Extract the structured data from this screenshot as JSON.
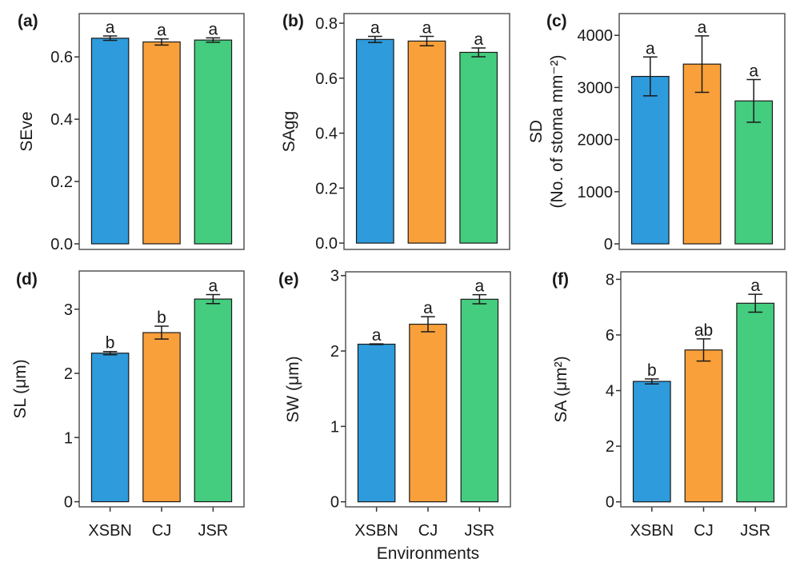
{
  "chart_data": [
    {
      "type": "bar",
      "panel": "(a)",
      "ylabel": "SEve",
      "categories": [
        "XSBN",
        "CJ",
        "JSR"
      ],
      "values": [
        0.66,
        0.648,
        0.654
      ],
      "errors": [
        0.007,
        0.01,
        0.007
      ],
      "letters": [
        "a",
        "a",
        "a"
      ],
      "yticks": [
        0.0,
        0.2,
        0.4,
        0.6
      ],
      "tick_labels": [
        "0.0",
        "0.2",
        "0.4",
        "0.6"
      ],
      "ylim": [
        -0.018,
        0.739
      ],
      "show_xticks": false
    },
    {
      "type": "bar",
      "panel": "(b)",
      "ylabel": "SAgg",
      "categories": [
        "XSBN",
        "CJ",
        "JSR"
      ],
      "values": [
        0.741,
        0.735,
        0.694
      ],
      "errors": [
        0.011,
        0.017,
        0.016
      ],
      "letters": [
        "a",
        "a",
        "a"
      ],
      "yticks": [
        0.0,
        0.2,
        0.4,
        0.6,
        0.8
      ],
      "tick_labels": [
        "0.0",
        "0.2",
        "0.4",
        "0.6",
        "0.8"
      ],
      "ylim": [
        -0.023,
        0.835
      ],
      "show_xticks": false
    },
    {
      "type": "bar",
      "panel": "(c)",
      "ylabel": "SD",
      "ylabel2": "(No. of stoma mm⁻²)",
      "categories": [
        "XSBN",
        "CJ",
        "JSR"
      ],
      "values": [
        3212,
        3448,
        2742
      ],
      "errors": [
        373,
        542,
        409
      ],
      "letters": [
        "a",
        "a",
        "a"
      ],
      "yticks": [
        0,
        1000,
        2000,
        3000,
        4000
      ],
      "tick_labels": [
        "0",
        "1000",
        "2000",
        "3000",
        "4000"
      ],
      "ylim": [
        -107,
        4417
      ],
      "show_xticks": false
    },
    {
      "type": "bar",
      "panel": "(d)",
      "ylabel": "SL (μm)",
      "categories": [
        "XSBN",
        "CJ",
        "JSR"
      ],
      "values": [
        2.315,
        2.635,
        3.158
      ],
      "errors": [
        0.025,
        0.1,
        0.07
      ],
      "letters": [
        "b",
        "b",
        "a"
      ],
      "yticks": [
        0,
        1,
        2,
        3
      ],
      "tick_labels": [
        "0",
        "1",
        "2",
        "3"
      ],
      "ylim": [
        -0.08,
        3.595
      ],
      "show_xticks": true
    },
    {
      "type": "bar",
      "panel": "(e)",
      "ylabel": "SW (μm)",
      "categories": [
        "XSBN",
        "CJ",
        "JSR"
      ],
      "values": [
        2.09,
        2.355,
        2.686
      ],
      "errors": [
        0.005,
        0.1,
        0.06
      ],
      "letters": [
        "a",
        "a",
        "a"
      ],
      "yticks": [
        0,
        1,
        2,
        3
      ],
      "tick_labels": [
        "0",
        "1",
        "2",
        "3"
      ],
      "ylim": [
        -0.067,
        3.05
      ],
      "show_xticks": true
    },
    {
      "type": "bar",
      "panel": "(f)",
      "ylabel": "SA (μm²)",
      "categories": [
        "XSBN",
        "CJ",
        "JSR"
      ],
      "values": [
        4.33,
        5.46,
        7.14
      ],
      "errors": [
        0.09,
        0.4,
        0.32
      ],
      "letters": [
        "b",
        "ab",
        "a"
      ],
      "yticks": [
        0,
        2,
        4,
        6,
        8
      ],
      "tick_labels": [
        "0",
        "2",
        "4",
        "6",
        "8"
      ],
      "ylim": [
        -0.18,
        8.27
      ],
      "show_xticks": true
    }
  ],
  "xlabel": "Environments",
  "colors": {
    "XSBN": "#2E9BDC",
    "CJ": "#F9A03A",
    "JSR": "#44CC7F",
    "frame": "#555555",
    "bar_edge": "#1a1a1a"
  }
}
